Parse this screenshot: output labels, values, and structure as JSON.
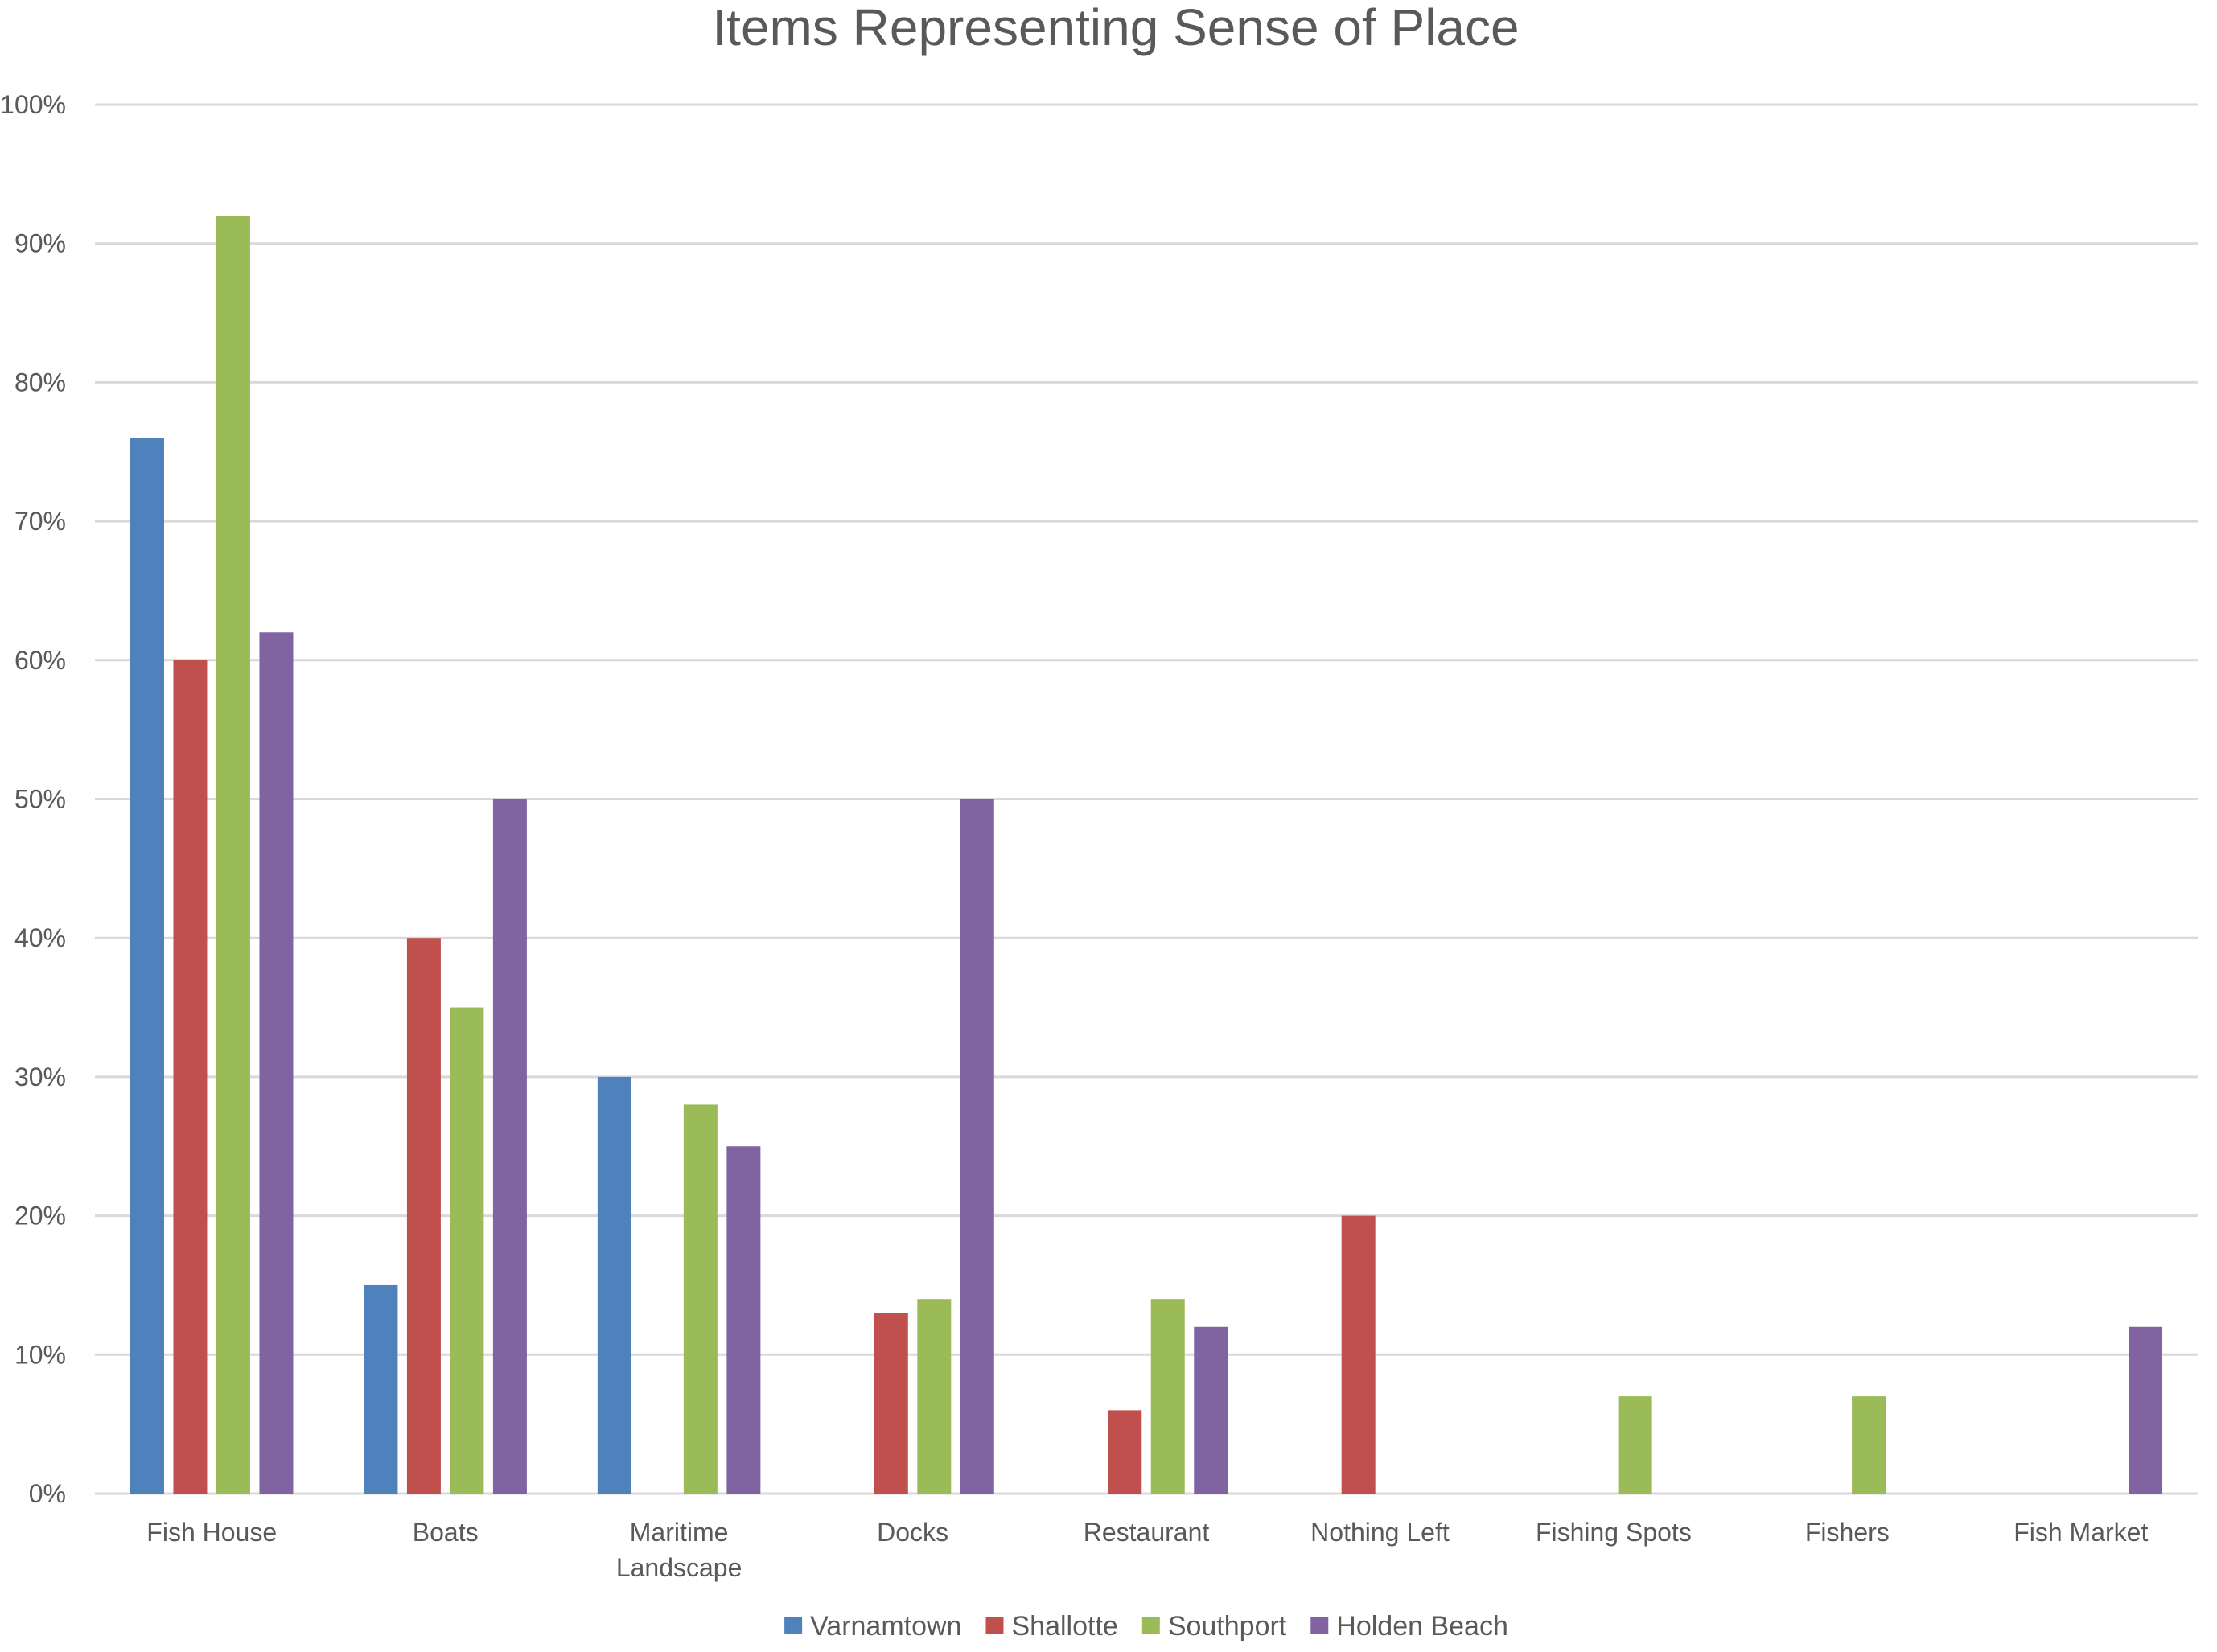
{
  "chart_data": {
    "type": "bar",
    "title": "Items Representing Sense of Place",
    "xlabel": "",
    "ylabel": "",
    "ylim": [
      0,
      100
    ],
    "y_ticks": [
      "0%",
      "10%",
      "20%",
      "30%",
      "40%",
      "50%",
      "60%",
      "70%",
      "80%",
      "90%",
      "100%"
    ],
    "grid": true,
    "legend_position": "bottom",
    "categories": [
      "Fish House",
      "Boats",
      "Maritime Landscape",
      "Docks",
      "Restaurant",
      "Nothing Left",
      "Fishing Spots",
      "Fishers",
      "Fish Market"
    ],
    "series": [
      {
        "name": "Varnamtown",
        "color": "#4f81bd",
        "values": [
          76,
          15,
          30,
          0,
          0,
          0,
          0,
          0,
          0
        ]
      },
      {
        "name": "Shallotte",
        "color": "#c0504d",
        "values": [
          60,
          40,
          0,
          13,
          6,
          20,
          0,
          0,
          0
        ]
      },
      {
        "name": "Southport",
        "color": "#9bbb59",
        "values": [
          92,
          35,
          28,
          14,
          14,
          0,
          7,
          7,
          0
        ]
      },
      {
        "name": "Holden Beach",
        "color": "#8064a2",
        "values": [
          62,
          50,
          25,
          50,
          12,
          0,
          0,
          0,
          12
        ]
      }
    ]
  }
}
